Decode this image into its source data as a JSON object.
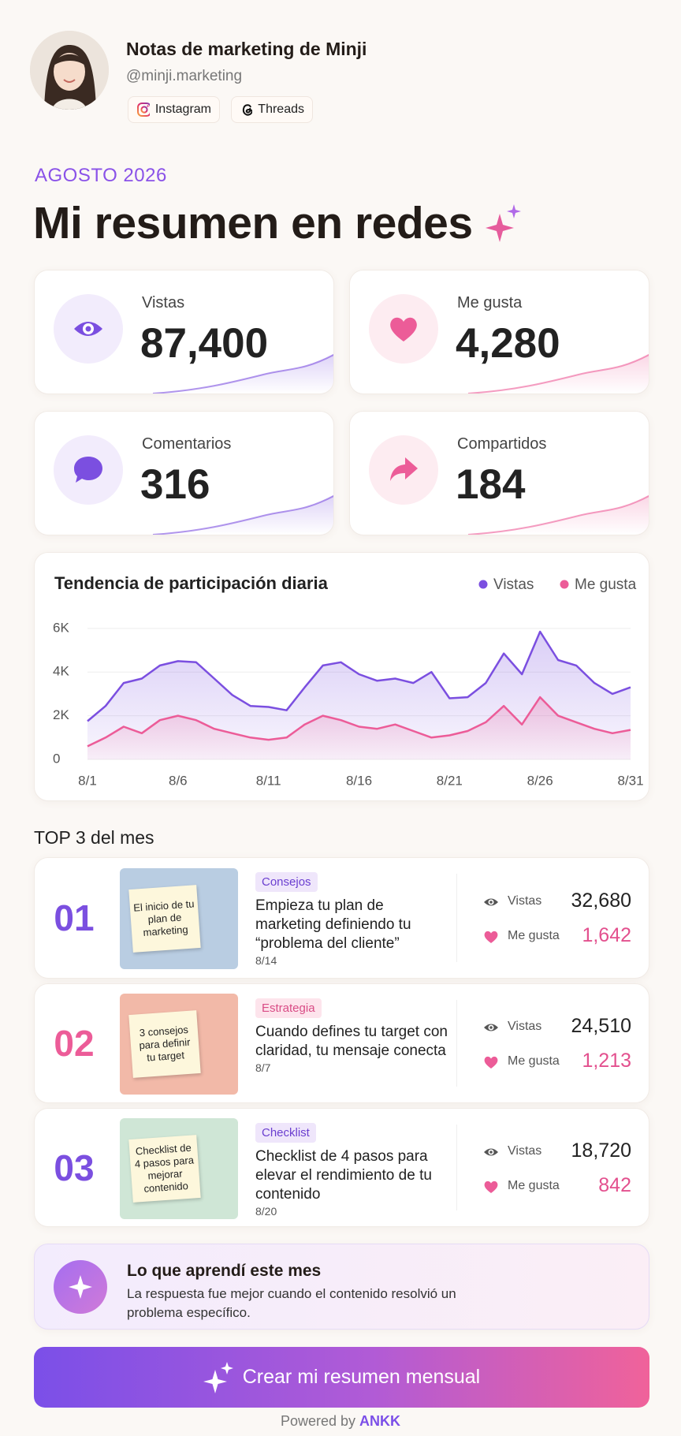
{
  "profile": {
    "name": "Notas de marketing de Minji",
    "handle": "@minji.marketing",
    "links": [
      "Instagram",
      "Threads"
    ]
  },
  "header": {
    "period": "AGOSTO 2026",
    "title": "Mi resumen en redes"
  },
  "stats": [
    {
      "label": "Vistas",
      "value": "87,400"
    },
    {
      "label": "Me gusta",
      "value": "4,280"
    },
    {
      "label": "Comentarios",
      "value": "316"
    },
    {
      "label": "Compartidos",
      "value": "184"
    }
  ],
  "chart_data": {
    "type": "line",
    "title": "Tendencia de participación diaria",
    "categories": [
      "8/1",
      null,
      null,
      null,
      null,
      "8/6",
      null,
      null,
      null,
      null,
      "8/11",
      null,
      null,
      null,
      null,
      "8/16",
      null,
      null,
      null,
      null,
      "8/21",
      null,
      null,
      null,
      null,
      "8/26",
      null,
      null,
      null,
      null,
      "8/31"
    ],
    "series": [
      {
        "name": "Vistas",
        "color": "#7b4fe0",
        "values": [
          1750,
          2450,
          3500,
          3700,
          4300,
          4500,
          4450,
          3700,
          2950,
          2450,
          2400,
          2250,
          3300,
          4300,
          4450,
          3900,
          3600,
          3700,
          3500,
          4000,
          2800,
          2850,
          3500,
          4850,
          3900,
          5850,
          4550,
          4300,
          3500,
          3000,
          3300
        ]
      },
      {
        "name": "Me gusta",
        "color": "#ec5c98",
        "values": [
          600,
          1000,
          1500,
          1200,
          1800,
          2000,
          1800,
          1400,
          1200,
          1000,
          900,
          1000,
          1600,
          2000,
          1800,
          1500,
          1400,
          1600,
          1300,
          1000,
          1100,
          1300,
          1700,
          2450,
          1600,
          2850,
          2000,
          1700,
          1400,
          1200,
          1350
        ]
      }
    ],
    "ylim": [
      0,
      6500
    ],
    "yticks": [
      0,
      {
        "value": 2000,
        "label": "2K"
      },
      {
        "value": 4000,
        "label": "4K"
      },
      {
        "value": 6000,
        "label": "6K"
      }
    ],
    "grid": true
  },
  "top": {
    "title": "TOP 3 del mes",
    "items": [
      {
        "rank": "01",
        "tag": "Consejos",
        "thumbnail": "El inicio de tu plan de marketing",
        "title": "Empieza tu plan de marketing definiendo tu “problema del cliente”",
        "date": "8/14",
        "views_label": "Vistas",
        "views": "32,680",
        "likes_label": "Me gusta",
        "likes": "1,642"
      },
      {
        "rank": "02",
        "tag": "Estrategia",
        "thumbnail": "3 consejos para definir tu target",
        "title": "Cuando defines tu target con claridad, tu mensaje conecta",
        "date": "8/7",
        "views_label": "Vistas",
        "views": "24,510",
        "likes_label": "Me gusta",
        "likes": "1,213"
      },
      {
        "rank": "03",
        "tag": "Checklist",
        "thumbnail": "Checklist de 4 pasos para mejorar contenido",
        "title": "Checklist de 4 pasos para elevar el rendimiento de tu contenido",
        "date": "8/20",
        "views_label": "Vistas",
        "views": "18,720",
        "likes_label": "Me gusta",
        "likes": "842"
      }
    ]
  },
  "insight": {
    "title": "Lo que aprendí este mes",
    "text": "La respuesta fue mejor cuando el contenido resolvió un problema específico."
  },
  "cta": "Crear mi resumen mensual",
  "footer": {
    "prefix": "Powered by",
    "brand": "ANKK"
  }
}
